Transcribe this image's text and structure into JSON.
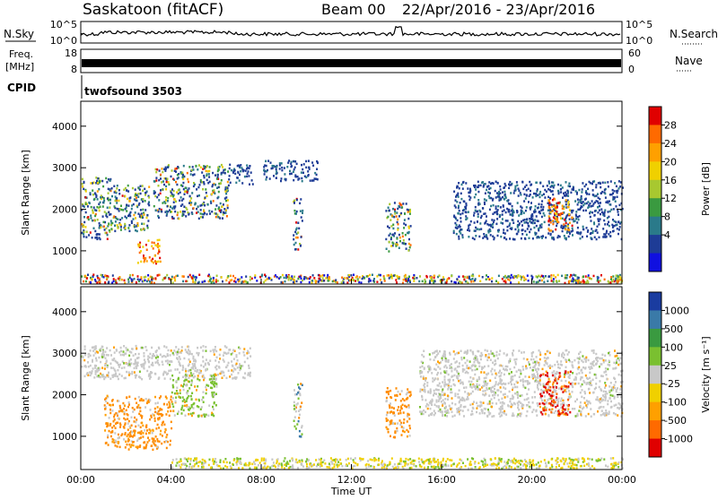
{
  "header": {
    "station": "Saskatoon (fitACF)",
    "beam": "Beam 00",
    "dates": "22/Apr/2016 - 23/Apr/2016"
  },
  "strips": {
    "nsky": {
      "label": "N.Sky",
      "ticks": [
        "10^5",
        "10^0"
      ]
    },
    "nsearch": {
      "label": "N.Search",
      "ticks": [
        "10^5",
        "10^0"
      ]
    },
    "freq": {
      "label_lines": [
        "Freq.",
        "[MHz]"
      ],
      "ticks": [
        "18",
        "8"
      ]
    },
    "nave": {
      "label": "Nave",
      "ticks": [
        "60",
        "0"
      ]
    },
    "cpid": {
      "label": "CPID",
      "program": "twofsound 3503"
    }
  },
  "chart_data": [
    {
      "type": "heatmap",
      "name": "power",
      "xlabel": "",
      "ylabel": "Slant Range [km]",
      "x_range": [
        0,
        24
      ],
      "xticks": [
        "00:00",
        "04:00",
        "08:00",
        "12:00",
        "16:00",
        "20:00",
        "00:00"
      ],
      "y_range": [
        200,
        4600
      ],
      "yticks": [
        1000,
        2000,
        3000,
        4000
      ],
      "colorbar": {
        "label": "Power [dB]",
        "ticks": [
          "28",
          "24",
          "20",
          "16",
          "12",
          "8",
          "4"
        ],
        "colors": [
          "#e00000",
          "#ff6a00",
          "#ffa000",
          "#f0d000",
          "#a8c830",
          "#3a9a40",
          "#2a7a8a",
          "#1e3c96",
          "#1010e0"
        ]
      },
      "regions": [
        {
          "t0": 0.0,
          "t1": 1.3,
          "r0": 1300,
          "r1": 2800,
          "level": "mixed"
        },
        {
          "t0": 1.3,
          "t1": 3.0,
          "r0": 1500,
          "r1": 2600,
          "level": "mixed"
        },
        {
          "t0": 2.5,
          "t1": 3.5,
          "r0": 700,
          "r1": 1300,
          "level": "high"
        },
        {
          "t0": 3.2,
          "t1": 6.5,
          "r0": 1800,
          "r1": 3100,
          "level": "mixed"
        },
        {
          "t0": 6.5,
          "t1": 7.6,
          "r0": 2600,
          "r1": 3100,
          "level": "low"
        },
        {
          "t0": 8.0,
          "t1": 10.5,
          "r0": 2700,
          "r1": 3200,
          "level": "low"
        },
        {
          "t0": 9.4,
          "t1": 9.8,
          "r0": 1000,
          "r1": 2300,
          "level": "mixed"
        },
        {
          "t0": 13.5,
          "t1": 14.6,
          "r0": 1000,
          "r1": 2200,
          "level": "mixed"
        },
        {
          "t0": 16.5,
          "t1": 24.0,
          "r0": 1300,
          "r1": 2700,
          "level": "low"
        },
        {
          "t0": 20.7,
          "t1": 21.8,
          "r0": 1500,
          "r1": 2300,
          "level": "high"
        },
        {
          "t0": 0.0,
          "t1": 24.0,
          "r0": 250,
          "r1": 450,
          "level": "ground"
        }
      ]
    },
    {
      "type": "heatmap",
      "name": "velocity",
      "xlabel": "Time UT",
      "ylabel": "Slant Range [km]",
      "x_range": [
        0,
        24
      ],
      "xticks": [
        "00:00",
        "04:00",
        "08:00",
        "12:00",
        "16:00",
        "20:00",
        "00:00"
      ],
      "y_range": [
        200,
        4600
      ],
      "yticks": [
        1000,
        2000,
        3000,
        4000
      ],
      "colorbar": {
        "label": "Velocity [m s⁻¹]",
        "ticks": [
          "1000",
          "500",
          "100",
          "25",
          "-25",
          "-100",
          "-500",
          "-1000"
        ],
        "colors": [
          "#1a3ca0",
          "#3a7aa8",
          "#3a9a40",
          "#7ac030",
          "#c8c8c8",
          "#f0d000",
          "#ffa000",
          "#ff6a00",
          "#e00000"
        ]
      },
      "regions": [
        {
          "t0": 0.0,
          "t1": 7.5,
          "r0": 2400,
          "r1": 3200,
          "level": "grey"
        },
        {
          "t0": 1.0,
          "t1": 4.0,
          "r0": 700,
          "r1": 2000,
          "level": "orange"
        },
        {
          "t0": 4.0,
          "t1": 6.0,
          "r0": 1500,
          "r1": 2500,
          "level": "green"
        },
        {
          "t0": 9.4,
          "t1": 9.8,
          "r0": 1000,
          "r1": 2300,
          "level": "mixed"
        },
        {
          "t0": 13.5,
          "t1": 14.6,
          "r0": 1000,
          "r1": 2200,
          "level": "orange"
        },
        {
          "t0": 15.0,
          "t1": 24.0,
          "r0": 1500,
          "r1": 3100,
          "level": "grey"
        },
        {
          "t0": 20.3,
          "t1": 21.7,
          "r0": 1500,
          "r1": 2600,
          "level": "red"
        },
        {
          "t0": 4.0,
          "t1": 24.0,
          "r0": 250,
          "r1": 500,
          "level": "ground"
        }
      ]
    }
  ]
}
